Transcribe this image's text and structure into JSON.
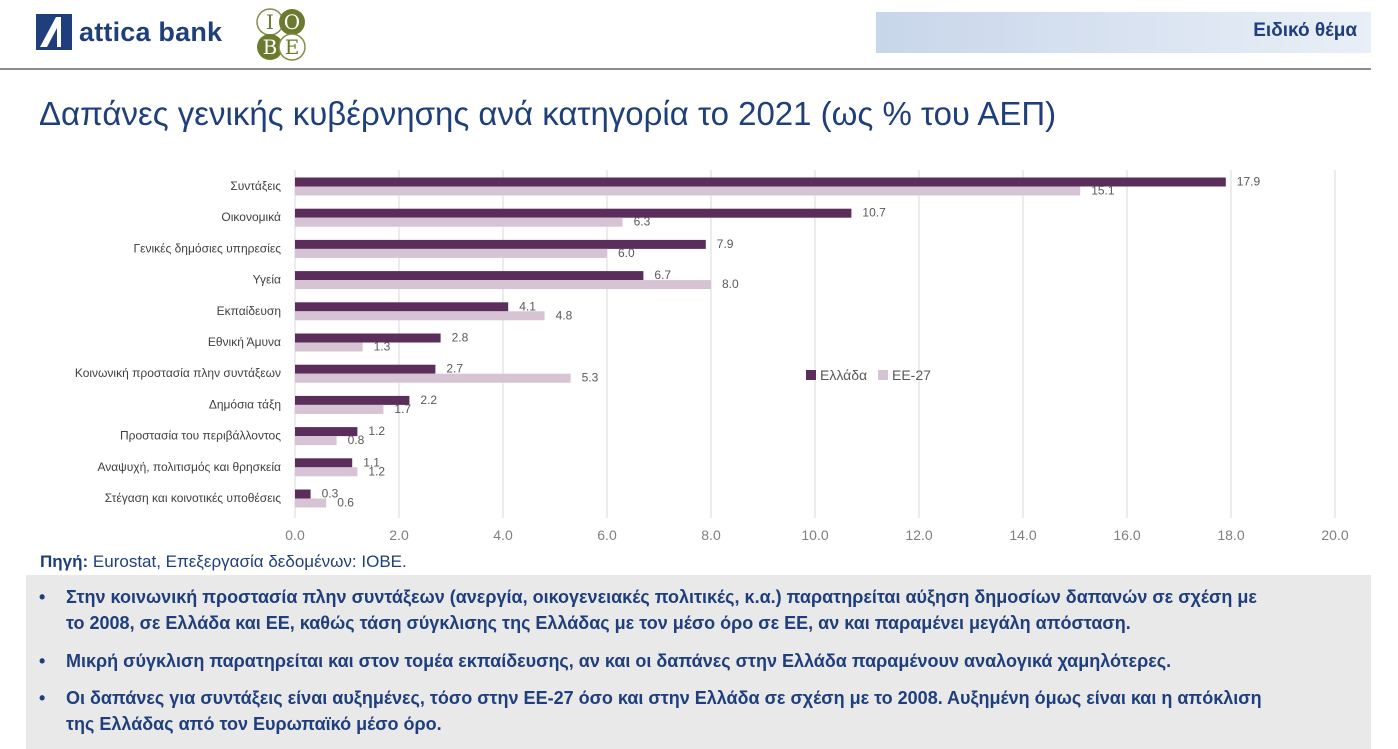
{
  "header": {
    "brand": "attica bank",
    "iobe_logo": [
      "I",
      "O",
      "B",
      "E"
    ],
    "special_label": "Ειδικό θέμα"
  },
  "title": "Δαπάνες γενικής κυβέρνησης ανά κατηγορία το 2021 (ως % του ΑΕΠ)",
  "chart_data": {
    "type": "bar",
    "orientation": "horizontal",
    "categories": [
      "Συντάξεις",
      "Οικονομικά",
      "Γενικές δημόσιες υπηρεσίες",
      "Υγεία",
      "Εκπαίδευση",
      "Εθνική Άμυνα",
      "Κοινωνική προστασία πλην συντάξεων",
      "Δημόσια τάξη",
      "Προστασία του περιβάλλοντος",
      "Αναψυχή, πολιτισμός και θρησκεία",
      "Στέγαση και κοινοτικές υποθέσεις"
    ],
    "series": [
      {
        "name": "Ελλάδα",
        "color": "#5b2d5b",
        "values": [
          17.9,
          10.7,
          7.9,
          6.7,
          4.1,
          2.8,
          2.7,
          2.2,
          1.2,
          1.1,
          0.3
        ]
      },
      {
        "name": "ΕΕ-27",
        "color": "#d6c3d4",
        "values": [
          15.1,
          6.3,
          6.0,
          8.0,
          4.8,
          1.3,
          5.3,
          1.7,
          0.8,
          1.2,
          0.6
        ]
      }
    ],
    "xlim": [
      0,
      20
    ],
    "xticks": [
      "0.0",
      "2.0",
      "4.0",
      "6.0",
      "8.0",
      "10.0",
      "12.0",
      "14.0",
      "16.0",
      "18.0",
      "20.0"
    ],
    "grid": true,
    "legend": "right-middle"
  },
  "source": {
    "label": "Πηγή:",
    "text": "Eurostat, Επεξεργασία δεδομένων: ΙΟΒΕ."
  },
  "notes": [
    {
      "bullet": "•",
      "lines": [
        "Στην κοινωνική προστασία πλην συντάξεων (ανεργία, οικογενειακές πολιτικές, κ.α.) παρατηρείται αύξηση δημοσίων δαπανών σε σχέση με",
        "το 2008, σε Ελλάδα και ΕΕ, καθώς τάση σύγκλισης της Ελλάδας με τον μέσο όρο σε ΕΕ, αν και παραμένει μεγάλη απόσταση."
      ]
    },
    {
      "bullet": "•",
      "lines": [
        "Μικρή σύγκλιση παρατηρείται και στον τομέα εκπαίδευσης, αν και οι δαπάνες στην Ελλάδα παραμένουν αναλογικά χαμηλότερες."
      ]
    },
    {
      "bullet": "•",
      "lines": [
        "Οι δαπάνες για συντάξεις είναι αυξημένες, τόσο στην ΕΕ-27 όσο και στην Ελλάδα σε σχέση με το 2008. Αυξημένη όμως είναι και η απόκλιση",
        "της Ελλάδας από τον Ευρωπαϊκό μέσο όρο."
      ]
    }
  ]
}
